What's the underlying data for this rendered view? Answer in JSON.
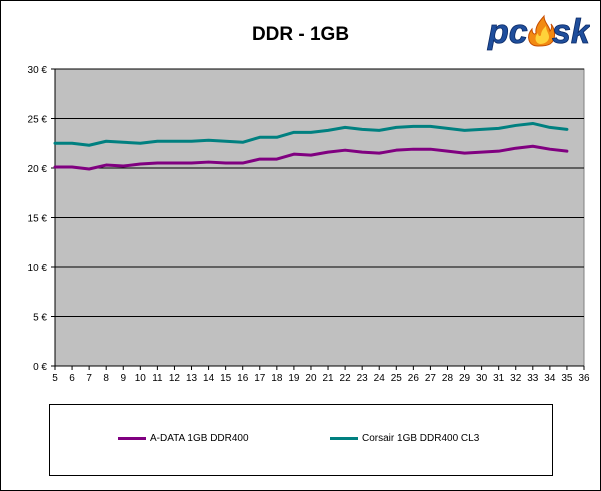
{
  "logo": {
    "text_pc": "pc",
    "text_sk": "sk",
    "icon": "flame-icon"
  },
  "chart_data": {
    "type": "line",
    "title": "DDR - 1GB",
    "xlabel": "",
    "ylabel": "",
    "x": [
      5,
      6,
      7,
      8,
      9,
      10,
      11,
      12,
      13,
      14,
      15,
      16,
      17,
      18,
      19,
      20,
      21,
      22,
      23,
      24,
      25,
      26,
      27,
      28,
      29,
      30,
      31,
      32,
      33,
      34,
      35
    ],
    "x_ticks": [
      5,
      6,
      7,
      8,
      9,
      10,
      11,
      12,
      13,
      14,
      15,
      16,
      17,
      18,
      19,
      20,
      21,
      22,
      23,
      24,
      25,
      26,
      27,
      28,
      29,
      30,
      31,
      32,
      33,
      34,
      35,
      36
    ],
    "xlim": [
      5,
      36
    ],
    "ylim": [
      0,
      30
    ],
    "y_ticks": [
      0,
      5,
      10,
      15,
      20,
      25,
      30
    ],
    "y_tick_labels": [
      "0 €",
      "5 €",
      "10 €",
      "15 €",
      "20 €",
      "25 €",
      "30 €"
    ],
    "grid": true,
    "plot_background": "#c0c0c0",
    "legend_position": "bottom",
    "series": [
      {
        "name": "A-DATA 1GB DDR400",
        "color": "#800080",
        "values": [
          20.1,
          20.1,
          19.9,
          20.3,
          20.2,
          20.4,
          20.5,
          20.5,
          20.5,
          20.6,
          20.5,
          20.5,
          20.9,
          20.9,
          21.4,
          21.3,
          21.6,
          21.8,
          21.6,
          21.5,
          21.8,
          21.9,
          21.9,
          21.7,
          21.5,
          21.6,
          21.7,
          22.0,
          22.2,
          21.9,
          21.7
        ]
      },
      {
        "name": "Corsair 1GB DDR400 CL3",
        "color": "#008080",
        "values": [
          22.5,
          22.5,
          22.3,
          22.7,
          22.6,
          22.5,
          22.7,
          22.7,
          22.7,
          22.8,
          22.7,
          22.6,
          23.1,
          23.1,
          23.6,
          23.6,
          23.8,
          24.1,
          23.9,
          23.8,
          24.1,
          24.2,
          24.2,
          24.0,
          23.8,
          23.9,
          24.0,
          24.3,
          24.5,
          24.1,
          23.9
        ]
      }
    ]
  }
}
